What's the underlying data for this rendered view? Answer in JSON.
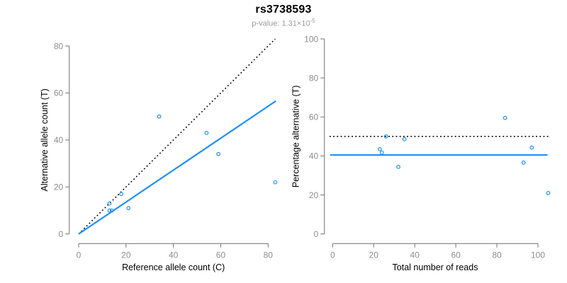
{
  "header": {
    "title": "rs3738593",
    "pvalue_base": "p-value: 1.31×10",
    "pvalue_exponent": "-5"
  },
  "colors": {
    "accent_blue": "#1E90FF",
    "line_black": "#000000",
    "axis_gray": "#7e7e7e",
    "tick_label_gray": "#8e8e8e",
    "subtitle_gray": "#9b9b9b"
  },
  "chart_data": [
    {
      "type": "scatter",
      "panel": "left",
      "xlabel": "Reference allele count (C)",
      "ylabel": "Alternative allele count (T)",
      "xlim": [
        0,
        83
      ],
      "ylim": [
        0,
        83
      ],
      "xticks": [
        0,
        20,
        40,
        60,
        80
      ],
      "yticks": [
        0,
        20,
        40,
        60,
        80
      ],
      "grid": false,
      "marker": "open-circle",
      "points": [
        [
          34,
          50
        ],
        [
          54,
          43
        ],
        [
          59,
          34
        ],
        [
          83,
          22
        ],
        [
          18,
          17
        ],
        [
          13,
          13
        ],
        [
          13,
          10
        ],
        [
          14,
          10
        ],
        [
          21,
          11
        ]
      ],
      "lines": [
        {
          "name": "identity-line",
          "style": "dotted",
          "color": "#000000",
          "x": [
            0,
            83
          ],
          "y": [
            0,
            83
          ]
        },
        {
          "name": "fit-line",
          "style": "solid",
          "color": "#1E90FF",
          "x": [
            0,
            83.3
          ],
          "y": [
            0,
            56.6
          ],
          "slope": 0.68,
          "intercept": 0
        }
      ]
    },
    {
      "type": "scatter",
      "panel": "right",
      "xlabel": "Total number of reads",
      "ylabel": "Percentage alternative (T)",
      "xlim": [
        0,
        105
      ],
      "ylim": [
        0,
        100
      ],
      "xticks": [
        0,
        20,
        40,
        60,
        80,
        100
      ],
      "yticks": [
        0,
        20,
        40,
        60,
        80,
        100
      ],
      "grid": false,
      "marker": "open-circle",
      "points": [
        [
          84,
          59.5
        ],
        [
          97,
          44.3
        ],
        [
          93,
          36.6
        ],
        [
          105,
          21.0
        ],
        [
          35,
          48.6
        ],
        [
          26,
          50.0
        ],
        [
          23,
          43.5
        ],
        [
          24,
          41.7
        ],
        [
          32,
          34.4
        ]
      ],
      "lines": [
        {
          "name": "expected-50-percent-line",
          "style": "dotted",
          "color": "#000000",
          "x": [
            -1.5,
            106
          ],
          "y": [
            50,
            50
          ],
          "value": 50
        },
        {
          "name": "overall-percentage-line",
          "style": "solid",
          "color": "#1E90FF",
          "x": [
            -1.2,
            104.7
          ],
          "y": [
            40.5,
            40.5
          ],
          "value": 40.5
        }
      ]
    }
  ]
}
